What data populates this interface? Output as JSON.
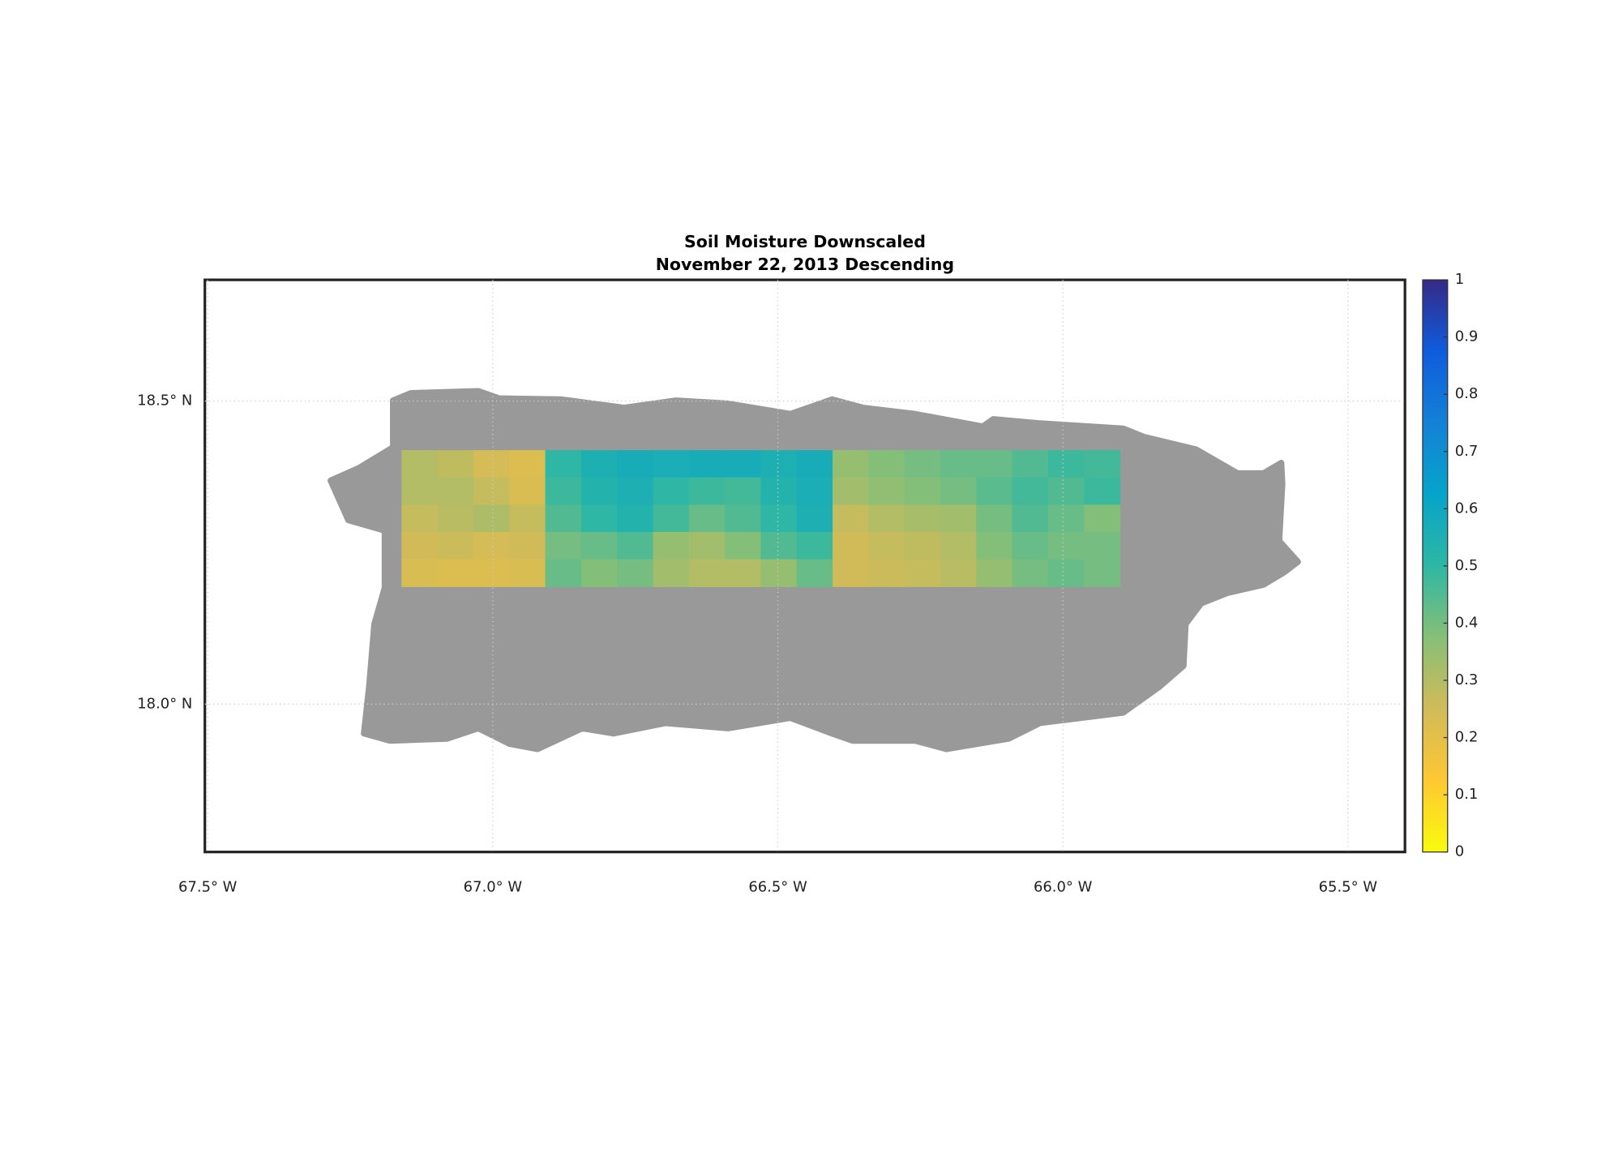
{
  "chart_data": {
    "type": "heatmap",
    "title": "Soil Moisture Downscaled",
    "subtitle": "November 22, 2013 Descending",
    "xlim": [
      -67.505,
      -65.4
    ],
    "ylim": [
      17.756,
      18.7
    ],
    "xticks": [
      {
        "value": -67.5,
        "label": "67.5° W"
      },
      {
        "value": -67.0,
        "label": "67.0° W"
      },
      {
        "value": -66.5,
        "label": "66.5° W"
      },
      {
        "value": -66.0,
        "label": "66.0° W"
      },
      {
        "value": -65.5,
        "label": "65.5° W"
      }
    ],
    "yticks": [
      {
        "value": 18.0,
        "label": "18.0° N"
      },
      {
        "value": 18.5,
        "label": "18.5° N"
      }
    ],
    "grid": true,
    "x_range": [
      -67.16,
      -65.9
    ],
    "y_range": [
      18.419,
      18.194
    ],
    "z": [
      [
        0.3,
        0.28,
        0.24,
        0.22,
        0.5,
        0.55,
        0.57,
        0.56,
        0.57,
        0.57,
        0.55,
        0.57,
        0.35,
        0.38,
        0.4,
        0.42,
        0.42,
        0.45,
        0.48,
        0.47
      ],
      [
        0.3,
        0.3,
        0.27,
        0.23,
        0.48,
        0.53,
        0.55,
        0.5,
        0.48,
        0.47,
        0.53,
        0.56,
        0.33,
        0.36,
        0.38,
        0.4,
        0.44,
        0.47,
        0.45,
        0.48
      ],
      [
        0.27,
        0.29,
        0.31,
        0.27,
        0.45,
        0.5,
        0.53,
        0.47,
        0.42,
        0.45,
        0.5,
        0.55,
        0.27,
        0.3,
        0.32,
        0.33,
        0.4,
        0.45,
        0.42,
        0.38
      ],
      [
        0.25,
        0.26,
        0.24,
        0.25,
        0.4,
        0.42,
        0.45,
        0.35,
        0.33,
        0.38,
        0.45,
        0.48,
        0.25,
        0.27,
        0.28,
        0.3,
        0.38,
        0.42,
        0.4,
        0.4
      ],
      [
        0.23,
        0.22,
        0.22,
        0.23,
        0.42,
        0.38,
        0.4,
        0.33,
        0.3,
        0.3,
        0.35,
        0.42,
        0.25,
        0.26,
        0.27,
        0.29,
        0.35,
        0.4,
        0.42,
        0.4
      ]
    ],
    "clim": [
      0,
      1
    ],
    "cticks": [
      0,
      0.1,
      0.2,
      0.3,
      0.4,
      0.5,
      0.6,
      0.7,
      0.8,
      0.9,
      1
    ],
    "colormap": [
      "#f9fb0e",
      "#fec832",
      "#d1bb59",
      "#87bf77",
      "#2eb7a4",
      "#06a4ca",
      "#1481d6",
      "#0f5cdd",
      "#352a87"
    ]
  }
}
